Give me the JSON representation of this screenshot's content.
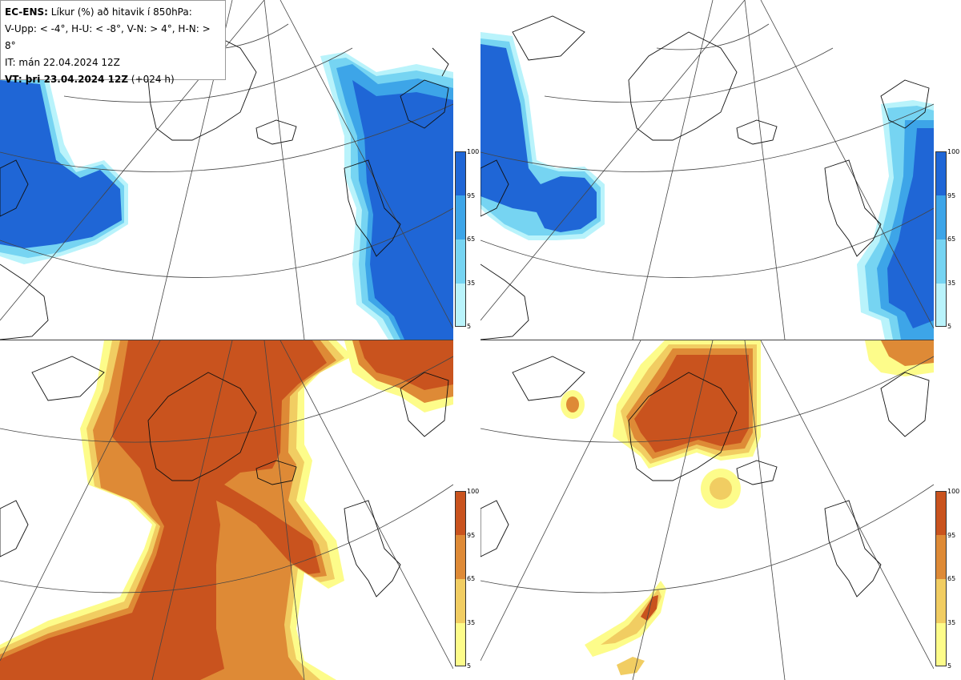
{
  "header": {
    "model": "EC-ENS:",
    "title": "Líkur (%) að hitavik í 850hPa:",
    "legend_line": "V-Upp: < -4°, H-U: < -8°, V-N: > 4°, H-N: > 8°",
    "init_time": "IT: mán 22.04.2024 12Z",
    "valid_label": "VT: þri 23.04.2024 12Z",
    "valid_offset": "(+024 h)"
  },
  "colorbars": {
    "ticks": [
      "100",
      "95",
      "65",
      "35",
      "5"
    ],
    "cold_colors": [
      "#1f66d6",
      "#3da5e8",
      "#76d4f2",
      "#b9f3fb"
    ],
    "warm_colors": [
      "#c9531e",
      "#de8a36",
      "#f1cd62",
      "#fdfc8a"
    ]
  },
  "panels": [
    {
      "name": "upper-left",
      "variable": "cold < -4°"
    },
    {
      "name": "upper-right",
      "variable": "cold < -8°"
    },
    {
      "name": "lower-left",
      "variable": "warm > 4°"
    },
    {
      "name": "lower-right",
      "variable": "warm > 8°"
    }
  ]
}
